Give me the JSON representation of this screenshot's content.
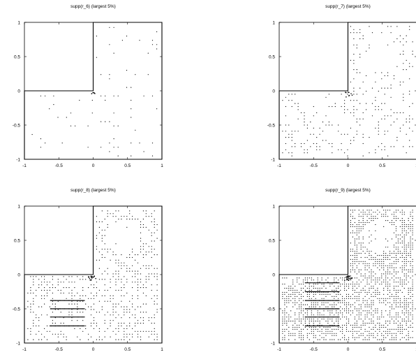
{
  "chart_data": [
    {
      "type": "scatter",
      "title": "supp(r_6) (largest 5%)",
      "xlim": [
        -1,
        1
      ],
      "ylim": [
        -1,
        1
      ],
      "xticks": [
        "-1",
        "-0.5",
        "0",
        "0.5",
        "1"
      ],
      "yticks": [
        "-1",
        "-0.5",
        "0",
        "0.5",
        "1"
      ],
      "domain_outline": [
        [
          -1,
          -1
        ],
        [
          1,
          -1
        ],
        [
          1,
          1
        ],
        [
          0,
          1
        ],
        [
          0,
          0
        ],
        [
          -1,
          0
        ],
        [
          -1,
          -1
        ]
      ],
      "point_density": 0.12,
      "point_spacing": 0.0625,
      "dense_rows": []
    },
    {
      "type": "scatter",
      "title": "supp(r_7) (largest 5%)",
      "xlim": [
        -1,
        1
      ],
      "ylim": [
        -1,
        1
      ],
      "xticks": [
        "-1",
        "-0.5",
        "0",
        "0.5",
        "1"
      ],
      "yticks": [
        "-1",
        "-0.5",
        "0",
        "0.5",
        "1"
      ],
      "domain_outline": [
        [
          -1,
          -1
        ],
        [
          1,
          -1
        ],
        [
          1,
          1
        ],
        [
          0,
          1
        ],
        [
          0,
          0
        ],
        [
          -1,
          0
        ],
        [
          -1,
          -1
        ]
      ],
      "point_density": 0.22,
      "point_spacing": 0.045,
      "dense_rows": []
    },
    {
      "type": "scatter",
      "title": "supp(r_8) (largest 5%)",
      "xlim": [
        -1,
        1
      ],
      "ylim": [
        -1,
        1
      ],
      "xticks": [
        "-1",
        "-0.5",
        "0",
        "0.5",
        "1"
      ],
      "yticks": [
        "-1",
        "-0.5",
        "0",
        "0.5",
        "1"
      ],
      "domain_outline": [
        [
          -1,
          -1
        ],
        [
          1,
          -1
        ],
        [
          1,
          1
        ],
        [
          0,
          1
        ],
        [
          0,
          0
        ],
        [
          -1,
          0
        ],
        [
          -1,
          -1
        ]
      ],
      "point_density": 0.38,
      "point_spacing": 0.04,
      "dense_rows": [
        -0.38,
        -0.5,
        -0.62,
        -0.75
      ]
    },
    {
      "type": "scatter",
      "title": "supp(r_9) (largest 5%)",
      "xlim": [
        -1,
        1
      ],
      "ylim": [
        -1,
        1
      ],
      "xticks": [
        "-1",
        "-0.5",
        "0",
        "0.5",
        "1"
      ],
      "yticks": [
        "-1",
        "-0.5",
        "0",
        "0.5",
        "1"
      ],
      "domain_outline": [
        [
          -1,
          -1
        ],
        [
          1,
          -1
        ],
        [
          1,
          1
        ],
        [
          0,
          1
        ],
        [
          0,
          0
        ],
        [
          -1,
          0
        ],
        [
          -1,
          -1
        ]
      ],
      "point_density": 0.55,
      "point_spacing": 0.03,
      "dense_rows": [
        -0.12,
        -0.25,
        -0.38,
        -0.5,
        -0.62,
        -0.75
      ]
    }
  ]
}
